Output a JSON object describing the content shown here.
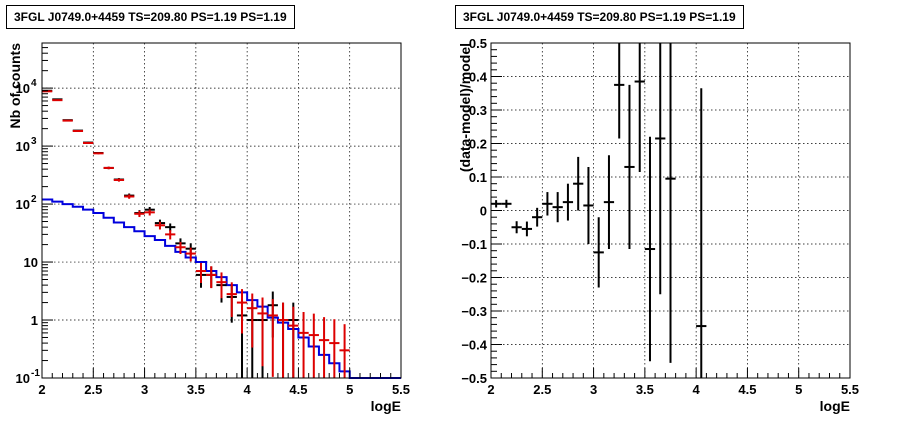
{
  "colors": {
    "data": "#000000",
    "model_points": "#dd0000",
    "source_model": "#0000dd"
  },
  "chart_data": [
    {
      "type": "line",
      "title": "3FGL J0749.0+4459 TS=209.80 PS=1.19 PS=1.19",
      "xlabel": "logE",
      "ylabel": "Nb of counts",
      "xlim": [
        2,
        5.5
      ],
      "ylim": [
        0.1,
        60000
      ],
      "yscale": "log",
      "grid": true,
      "x_ticks": [
        "2",
        "2.5",
        "3",
        "3.5",
        "4",
        "4.5",
        "5",
        "5.5"
      ],
      "y_ticks": [
        {
          "value": 0.1,
          "base": "10",
          "exp": "-1"
        },
        {
          "value": 1,
          "base": "1",
          "exp": ""
        },
        {
          "value": 10,
          "base": "10",
          "exp": ""
        },
        {
          "value": 100,
          "base": "10",
          "exp": "2"
        },
        {
          "value": 1000,
          "base": "10",
          "exp": "3"
        },
        {
          "value": 10000,
          "base": "10",
          "exp": "4"
        }
      ],
      "bin_width": 0.1,
      "series": [
        {
          "kind": "data",
          "x": [
            2.05,
            2.15,
            2.25,
            2.35,
            2.45,
            2.55,
            2.65,
            2.75,
            2.85,
            2.95,
            3.05,
            3.15,
            3.25,
            3.35,
            3.45,
            3.55,
            3.65,
            3.75,
            3.85,
            3.95,
            4.05,
            4.15,
            4.25,
            4.35,
            4.45
          ],
          "y": [
            9000,
            6400,
            2800,
            1850,
            1150,
            760,
            420,
            265,
            140,
            70,
            80,
            47,
            40,
            21,
            17,
            6,
            6,
            4,
            2.5,
            1.2,
            1,
            1,
            1.8,
            1,
            1
          ],
          "yerr": [
            95,
            80,
            53,
            43,
            34,
            28,
            20,
            16,
            12,
            8.4,
            9,
            6.9,
            6.3,
            4.6,
            4.1,
            2.4,
            2.4,
            2,
            1.6,
            1.1,
            1,
            1,
            1.3,
            1,
            1
          ]
        },
        {
          "kind": "model_points",
          "x": [
            2.05,
            2.15,
            2.25,
            2.35,
            2.45,
            2.55,
            2.65,
            2.75,
            2.85,
            2.95,
            3.05,
            3.15,
            3.25,
            3.35,
            3.45,
            3.55,
            3.65,
            3.75,
            3.85,
            3.95,
            4.05,
            4.15,
            4.25,
            4.35,
            4.45,
            4.55,
            4.65,
            4.75,
            4.85,
            4.95
          ],
          "y": [
            8800,
            6200,
            2750,
            1820,
            1130,
            750,
            420,
            260,
            135,
            68,
            72,
            43,
            30,
            18,
            14,
            7,
            6,
            4.5,
            2.8,
            2,
            1.6,
            1.3,
            1.2,
            1,
            0.8,
            0.6,
            0.55,
            0.45,
            0.4,
            0.3
          ]
        },
        {
          "kind": "source_model",
          "x": [
            2.0,
            2.1,
            2.2,
            2.3,
            2.4,
            2.5,
            2.6,
            2.7,
            2.8,
            2.9,
            3.0,
            3.1,
            3.2,
            3.3,
            3.4,
            3.5,
            3.6,
            3.7,
            3.8,
            3.9,
            4.0,
            4.1,
            4.2,
            4.3,
            4.4,
            4.5,
            4.6,
            4.7,
            4.8,
            4.9,
            5.0,
            5.1,
            5.2,
            5.3,
            5.4
          ],
          "y": [
            120,
            110,
            100,
            90,
            80,
            70,
            58,
            48,
            40,
            34,
            28,
            24,
            19,
            15,
            12,
            10,
            7,
            5.5,
            4,
            3,
            2.2,
            1.7,
            1.1,
            0.9,
            0.7,
            0.5,
            0.35,
            0.25,
            0.18,
            0.13,
            0.1,
            0.1,
            0.1,
            0.1,
            0.1
          ]
        }
      ]
    },
    {
      "type": "scatter",
      "title": "3FGL J0749.0+4459 TS=209.80 PS=1.19 PS=1.19",
      "xlabel": "logE",
      "ylabel": "(data-model)/model",
      "xlim": [
        2,
        5.5
      ],
      "ylim": [
        -0.5,
        0.5
      ],
      "grid": true,
      "x_ticks": [
        "2",
        "2.5",
        "3",
        "3.5",
        "4",
        "4.5",
        "5",
        "5.5"
      ],
      "y_ticks": [
        "−0.5",
        "−0.4",
        "−0.3",
        "−0.2",
        "−0.1",
        "0",
        "0.1",
        "0.2",
        "0.3",
        "0.4",
        "0.5"
      ],
      "bin_width": 0.1,
      "series": [
        {
          "kind": "residuals",
          "x": [
            2.05,
            2.15,
            2.25,
            2.35,
            2.45,
            2.55,
            2.65,
            2.75,
            2.85,
            2.95,
            3.05,
            3.15,
            3.25,
            3.35,
            3.45,
            3.55,
            3.65,
            3.75,
            4.05
          ],
          "y": [
            0.02,
            0.02,
            -0.05,
            -0.055,
            -0.02,
            0.02,
            0.01,
            0.025,
            0.08,
            0.015,
            -0.125,
            0.025,
            0.375,
            0.13,
            0.385,
            -0.115,
            0.215,
            0.095,
            -0.345
          ],
          "yerr": [
            0.011,
            0.012,
            0.018,
            0.022,
            0.028,
            0.035,
            0.045,
            0.055,
            0.08,
            0.115,
            0.105,
            0.14,
            0.16,
            0.245,
            0.27,
            0.335,
            0.465,
            0.55,
            0.71
          ]
        }
      ]
    }
  ]
}
